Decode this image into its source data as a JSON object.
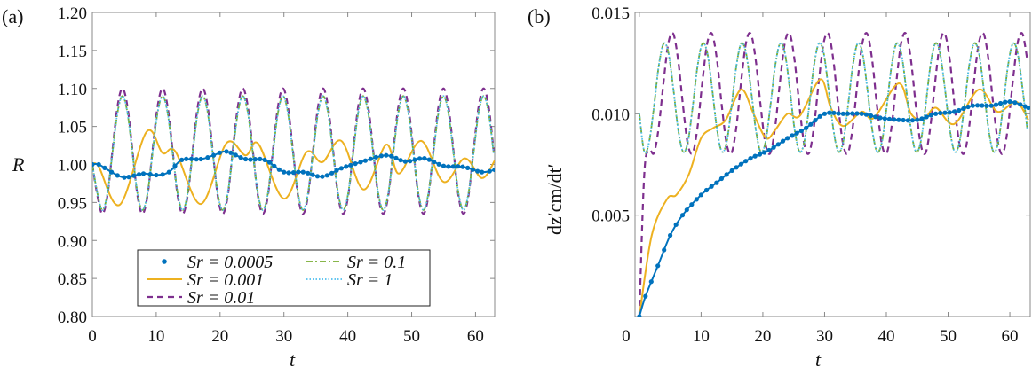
{
  "chart_data": [
    {
      "type": "line",
      "panel_label": "(a)",
      "xlabel": "t",
      "ylabel": "R",
      "xlim": [
        0,
        63
      ],
      "ylim": [
        0.8,
        1.2
      ],
      "xticks": [
        "0",
        "10",
        "20",
        "30",
        "40",
        "50",
        "60"
      ],
      "yticks": [
        "0.80",
        "0.85",
        "0.90",
        "0.95",
        "1.00",
        "1.05",
        "1.10",
        "1.15",
        "1.20"
      ],
      "grid": false,
      "legend": "bottom-center",
      "t_grid": [
        0,
        0.79,
        1.57,
        2.36,
        3.14,
        3.93,
        4.71,
        5.5,
        6.28,
        7.07,
        7.85,
        8.64,
        9.42,
        10.21,
        11.0,
        11.78,
        12.57,
        13.35,
        14.14,
        14.92,
        15.71,
        16.49,
        17.28,
        18.06,
        18.85,
        19.63,
        20.42,
        21.21,
        21.99,
        22.78,
        23.56,
        24.35,
        25.13,
        25.92,
        26.7,
        27.49,
        28.27,
        29.06,
        29.85,
        30.63,
        31.42,
        32.2,
        32.99,
        33.77,
        34.56,
        35.34,
        36.13,
        36.91,
        37.7,
        38.48,
        39.27,
        40.06,
        40.84,
        41.63,
        42.41,
        43.2,
        43.98,
        44.77,
        45.55,
        46.34,
        47.12,
        47.91,
        48.69,
        49.48,
        50.27,
        51.05,
        51.84,
        52.62,
        53.41,
        54.19,
        54.98,
        55.76,
        56.55,
        57.33,
        58.12,
        58.9,
        59.69,
        60.48,
        61.26,
        62.05,
        62.83
      ],
      "series": [
        {
          "name": "Sr = 0.0005",
          "color": "#0072BD",
          "style": "solid-markers",
          "t": [
            0,
            1,
            3,
            5,
            8,
            10,
            12,
            14,
            17,
            19,
            21,
            24,
            27,
            30,
            33,
            36,
            39,
            42,
            46,
            49,
            52,
            55,
            58,
            61,
            63
          ],
          "values": [
            1.0,
            1.0,
            0.99,
            0.983,
            0.988,
            0.986,
            0.99,
            1.006,
            1.007,
            1.012,
            1.017,
            1.007,
            1.006,
            0.99,
            0.99,
            0.984,
            0.995,
            1.003,
            1.012,
            1.004,
            1.008,
            0.998,
            0.997,
            0.99,
            0.993
          ]
        },
        {
          "name": "Sr = 0.001",
          "color": "#EDB120",
          "style": "solid",
          "t": [
            0,
            1,
            4.3,
            8.5,
            11,
            13,
            17,
            21,
            24,
            26,
            30,
            33.5,
            36,
            39,
            42.5,
            46,
            48,
            51.5,
            55,
            58.3,
            61,
            63
          ],
          "values": [
            1.0,
            0.997,
            0.947,
            1.043,
            1.015,
            1.017,
            0.948,
            1.028,
            1.012,
            1.027,
            0.955,
            1.016,
            1.003,
            1.031,
            0.967,
            1.026,
            0.988,
            1.031,
            0.977,
            1.008,
            0.982,
            1.005
          ]
        },
        {
          "name": "Sr = 0.01",
          "color": "#7E2F8E",
          "style": "dashed",
          "values": [
            1.0,
            0.959,
            0.935,
            0.959,
            1.018,
            1.076,
            1.1,
            1.076,
            1.018,
            0.959,
            0.935,
            0.959,
            1.018,
            1.076,
            1.1,
            1.076,
            1.018,
            0.959,
            0.935,
            0.959,
            1.018,
            1.076,
            1.1,
            1.076,
            1.018,
            0.959,
            0.935,
            0.959,
            1.018,
            1.076,
            1.1,
            1.076,
            1.018,
            0.959,
            0.935,
            0.959,
            1.018,
            1.076,
            1.1,
            1.076,
            1.018,
            0.959,
            0.935,
            0.959,
            1.018,
            1.076,
            1.1,
            1.076,
            1.018,
            0.959,
            0.935,
            0.959,
            1.018,
            1.076,
            1.1,
            1.076,
            1.018,
            0.959,
            0.935,
            0.959,
            1.018,
            1.076,
            1.1,
            1.076,
            1.018,
            0.959,
            0.935,
            0.959,
            1.018,
            1.076,
            1.1,
            1.076,
            1.018,
            0.959,
            0.935,
            0.959,
            1.018,
            1.076,
            1.1,
            1.076,
            1.018
          ]
        },
        {
          "name": "Sr = 0.1",
          "color": "#77AC30",
          "style": "dashdot",
          "values": [
            1.0,
            0.962,
            0.94,
            0.962,
            1.015,
            1.068,
            1.09,
            1.068,
            1.015,
            0.962,
            0.94,
            0.962,
            1.015,
            1.068,
            1.09,
            1.068,
            1.015,
            0.962,
            0.94,
            0.962,
            1.015,
            1.068,
            1.09,
            1.068,
            1.015,
            0.962,
            0.94,
            0.962,
            1.015,
            1.068,
            1.09,
            1.068,
            1.015,
            0.962,
            0.94,
            0.962,
            1.015,
            1.068,
            1.09,
            1.068,
            1.015,
            0.962,
            0.94,
            0.962,
            1.015,
            1.068,
            1.09,
            1.068,
            1.015,
            0.962,
            0.94,
            0.962,
            1.015,
            1.068,
            1.09,
            1.068,
            1.015,
            0.962,
            0.94,
            0.962,
            1.015,
            1.068,
            1.09,
            1.068,
            1.015,
            0.962,
            0.94,
            0.962,
            1.015,
            1.068,
            1.09,
            1.068,
            1.015,
            0.962,
            0.94,
            0.962,
            1.015,
            1.068,
            1.09,
            1.068,
            1.015
          ]
        },
        {
          "name": "Sr = 1",
          "color": "#4DBEEE",
          "style": "dotted",
          "values": [
            1.0,
            0.962,
            0.94,
            0.962,
            1.015,
            1.068,
            1.09,
            1.068,
            1.015,
            0.962,
            0.94,
            0.962,
            1.015,
            1.068,
            1.09,
            1.068,
            1.015,
            0.962,
            0.94,
            0.962,
            1.015,
            1.068,
            1.09,
            1.068,
            1.015,
            0.962,
            0.94,
            0.962,
            1.015,
            1.068,
            1.09,
            1.068,
            1.015,
            0.962,
            0.94,
            0.962,
            1.015,
            1.068,
            1.09,
            1.068,
            1.015,
            0.962,
            0.94,
            0.962,
            1.015,
            1.068,
            1.09,
            1.068,
            1.015,
            0.962,
            0.94,
            0.962,
            1.015,
            1.068,
            1.09,
            1.068,
            1.015,
            0.962,
            0.94,
            0.962,
            1.015,
            1.068,
            1.09,
            1.068,
            1.015,
            0.962,
            0.94,
            0.962,
            1.015,
            1.068,
            1.09,
            1.068,
            1.015,
            0.962,
            0.94,
            0.962,
            1.015,
            1.068,
            1.09,
            1.068,
            1.015
          ]
        }
      ]
    },
    {
      "type": "line",
      "panel_label": "(b)",
      "xlabel": "t",
      "ylabel": "dz′cm/dt′",
      "xlim": [
        -0.7,
        63.3
      ],
      "ylim": [
        0,
        0.015
      ],
      "xticks": [
        "0",
        "10",
        "20",
        "30",
        "40",
        "50",
        "60"
      ],
      "yticks": [
        "0.005",
        "0.010",
        "0.015"
      ],
      "grid": false,
      "series": [
        {
          "name": "Sr = 0.0005",
          "color": "#0072BD",
          "style": "solid-markers",
          "t": [
            0,
            1,
            3,
            5,
            7,
            10,
            12.5,
            15,
            18,
            21,
            24,
            27,
            30,
            33,
            36,
            39,
            42,
            45,
            48,
            51,
            54,
            57,
            60,
            63
          ],
          "values": [
            0,
            0.001,
            0.0025,
            0.004,
            0.005,
            0.006,
            0.0066,
            0.0072,
            0.0078,
            0.0082,
            0.0088,
            0.0093,
            0.01,
            0.01,
            0.01,
            0.0098,
            0.0097,
            0.0097,
            0.01,
            0.0101,
            0.0104,
            0.0104,
            0.0106,
            0.0103
          ]
        },
        {
          "name": "Sr = 0.001",
          "color": "#EDB120",
          "style": "solid",
          "t": [
            0,
            2,
            4.5,
            6,
            8,
            10,
            12,
            14,
            16.5,
            18.5,
            20.5,
            22,
            24,
            26,
            29.3,
            31,
            33,
            36,
            38,
            42,
            44,
            46,
            48,
            51,
            55,
            58,
            61,
            63
          ],
          "values": [
            0,
            0.004,
            0.0058,
            0.006,
            0.007,
            0.0088,
            0.0093,
            0.0097,
            0.0112,
            0.01,
            0.0088,
            0.0092,
            0.01,
            0.0099,
            0.0117,
            0.0103,
            0.0094,
            0.0101,
            0.0098,
            0.0115,
            0.01,
            0.0097,
            0.0103,
            0.0095,
            0.0112,
            0.0101,
            0.0106,
            0.0097
          ]
        },
        {
          "name": "Sr = 0.01",
          "color": "#7E2F8E",
          "style": "dashed",
          "values": [
            0,
            0.007,
            0.0082,
            0.00806,
            0.00934,
            0.01159,
            0.0135,
            0.01394,
            0.01266,
            0.01041,
            0.00851,
            0.00806,
            0.00934,
            0.01159,
            0.0135,
            0.01394,
            0.01266,
            0.01041,
            0.00851,
            0.00806,
            0.00934,
            0.01159,
            0.0135,
            0.01394,
            0.01266,
            0.01041,
            0.00851,
            0.00806,
            0.00934,
            0.01159,
            0.0135,
            0.01394,
            0.01266,
            0.01041,
            0.00851,
            0.00806,
            0.00934,
            0.01159,
            0.0135,
            0.01394,
            0.01266,
            0.01041,
            0.00851,
            0.00806,
            0.00934,
            0.01159,
            0.0135,
            0.01394,
            0.01266,
            0.01041,
            0.00851,
            0.00806,
            0.00934,
            0.01159,
            0.0135,
            0.01394,
            0.01266,
            0.01041,
            0.00851,
            0.00806,
            0.00934,
            0.01159,
            0.0135,
            0.01394,
            0.01266,
            0.01041,
            0.00851,
            0.00806,
            0.00934,
            0.01159,
            0.0135,
            0.01394,
            0.01266,
            0.01041,
            0.00851,
            0.00806,
            0.00934,
            0.01159,
            0.0135,
            0.01394,
            0.01266
          ]
        },
        {
          "name": "Sr = 0.1",
          "color": "#77AC30",
          "style": "dashdot",
          "values": [
            0.01,
            0.00814,
            0.00859,
            0.01034,
            0.01235,
            0.01346,
            0.01301,
            0.01126,
            0.00925,
            0.00814,
            0.00859,
            0.01034,
            0.01235,
            0.01346,
            0.01301,
            0.01126,
            0.00925,
            0.00814,
            0.00859,
            0.01034,
            0.01235,
            0.01346,
            0.01301,
            0.01126,
            0.00925,
            0.00814,
            0.00859,
            0.01034,
            0.01235,
            0.01346,
            0.01301,
            0.01126,
            0.00925,
            0.00814,
            0.00859,
            0.01034,
            0.01235,
            0.01346,
            0.01301,
            0.01126,
            0.00925,
            0.00814,
            0.00859,
            0.01034,
            0.01235,
            0.01346,
            0.01301,
            0.01126,
            0.00925,
            0.00814,
            0.00859,
            0.01034,
            0.01235,
            0.01346,
            0.01301,
            0.01126,
            0.00925,
            0.00814,
            0.00859,
            0.01034,
            0.01235,
            0.01346,
            0.01301,
            0.01126,
            0.00925,
            0.00814,
            0.00859,
            0.01034,
            0.01235,
            0.01346,
            0.01301,
            0.01126,
            0.00925,
            0.00814,
            0.00859,
            0.01034,
            0.01235,
            0.01346,
            0.01301,
            0.01126,
            0.00925
          ]
        },
        {
          "name": "Sr = 1",
          "color": "#4DBEEE",
          "style": "dotted",
          "values": [
            0.01,
            0.00814,
            0.00859,
            0.01034,
            0.01235,
            0.01346,
            0.01301,
            0.01126,
            0.00925,
            0.00814,
            0.00859,
            0.01034,
            0.01235,
            0.01346,
            0.01301,
            0.01126,
            0.00925,
            0.00814,
            0.00859,
            0.01034,
            0.01235,
            0.01346,
            0.01301,
            0.01126,
            0.00925,
            0.00814,
            0.00859,
            0.01034,
            0.01235,
            0.01346,
            0.01301,
            0.01126,
            0.00925,
            0.00814,
            0.00859,
            0.01034,
            0.01235,
            0.01346,
            0.01301,
            0.01126,
            0.00925,
            0.00814,
            0.00859,
            0.01034,
            0.01235,
            0.01346,
            0.01301,
            0.01126,
            0.00925,
            0.00814,
            0.00859,
            0.01034,
            0.01235,
            0.01346,
            0.01301,
            0.01126,
            0.00925,
            0.00814,
            0.00859,
            0.01034,
            0.01235,
            0.01346,
            0.01301,
            0.01126,
            0.00925,
            0.00814,
            0.00859,
            0.01034,
            0.01235,
            0.01346,
            0.01301,
            0.01126,
            0.00925,
            0.00814,
            0.00859,
            0.01034,
            0.01235,
            0.01346,
            0.01301,
            0.01126,
            0.00925
          ]
        }
      ]
    }
  ]
}
